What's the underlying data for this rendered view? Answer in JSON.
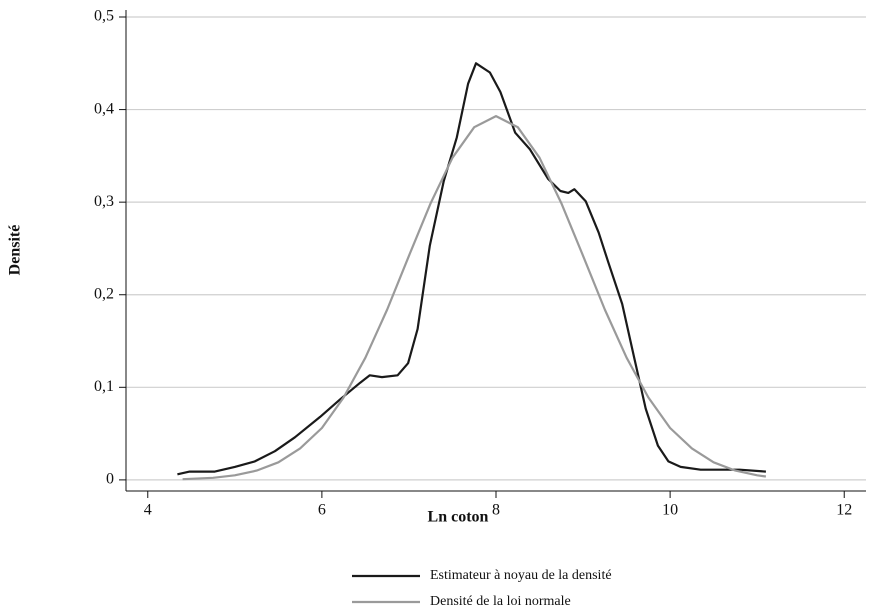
{
  "chart_data": {
    "type": "line",
    "xlabel": "Ln coton",
    "ylabel": "Densité",
    "xlim": [
      3.75,
      12.25
    ],
    "xticks": [
      4,
      6,
      8,
      10,
      12
    ],
    "ylim": [
      -0.012,
      0.5
    ],
    "yticks": [
      0,
      {
        "value": 0.1,
        "label": "0,1"
      },
      {
        "value": 0.2,
        "label": "0,2"
      },
      {
        "value": 0.3,
        "label": "0,3"
      },
      {
        "value": 0.4,
        "label": "0,4"
      },
      {
        "value": 0.5,
        "label": "0,5"
      }
    ],
    "grid": true,
    "legend": "bottom",
    "series": [
      {
        "name": "Estimateur à noyau de la densité",
        "color": "#1a1a1a",
        "x": [
          4.34,
          4.48,
          4.77,
          5.0,
          5.23,
          5.46,
          5.69,
          5.98,
          6.21,
          6.44,
          6.55,
          6.69,
          6.87,
          6.99,
          7.1,
          7.24,
          7.4,
          7.55,
          7.68,
          7.77,
          7.93,
          8.05,
          8.22,
          8.39,
          8.6,
          8.74,
          8.83,
          8.9,
          9.03,
          9.18,
          9.29,
          9.45,
          9.59,
          9.72,
          9.86,
          9.98,
          10.12,
          10.35,
          10.8,
          11.1
        ],
        "values": [
          0.006,
          0.009,
          0.009,
          0.014,
          0.02,
          0.031,
          0.046,
          0.068,
          0.087,
          0.105,
          0.113,
          0.111,
          0.113,
          0.126,
          0.163,
          0.253,
          0.323,
          0.37,
          0.428,
          0.45,
          0.44,
          0.419,
          0.375,
          0.357,
          0.325,
          0.312,
          0.31,
          0.314,
          0.301,
          0.267,
          0.235,
          0.19,
          0.131,
          0.077,
          0.037,
          0.02,
          0.014,
          0.011,
          0.011,
          0.009
        ]
      },
      {
        "name": "Densité de la loi normale",
        "color": "#9a9a9a",
        "x": [
          4.4,
          4.75,
          5.0,
          5.25,
          5.5,
          5.75,
          6.0,
          6.25,
          6.5,
          6.75,
          7.0,
          7.25,
          7.5,
          7.75,
          8.0,
          8.25,
          8.5,
          8.75,
          9.0,
          9.25,
          9.5,
          9.75,
          10.0,
          10.25,
          10.5,
          10.75,
          11.0,
          11.1
        ],
        "values": [
          0.0007,
          0.0023,
          0.005,
          0.01,
          0.019,
          0.034,
          0.056,
          0.089,
          0.132,
          0.184,
          0.242,
          0.299,
          0.348,
          0.381,
          0.393,
          0.381,
          0.348,
          0.299,
          0.242,
          0.184,
          0.132,
          0.089,
          0.056,
          0.034,
          0.019,
          0.01,
          0.005,
          0.0037
        ]
      }
    ]
  }
}
